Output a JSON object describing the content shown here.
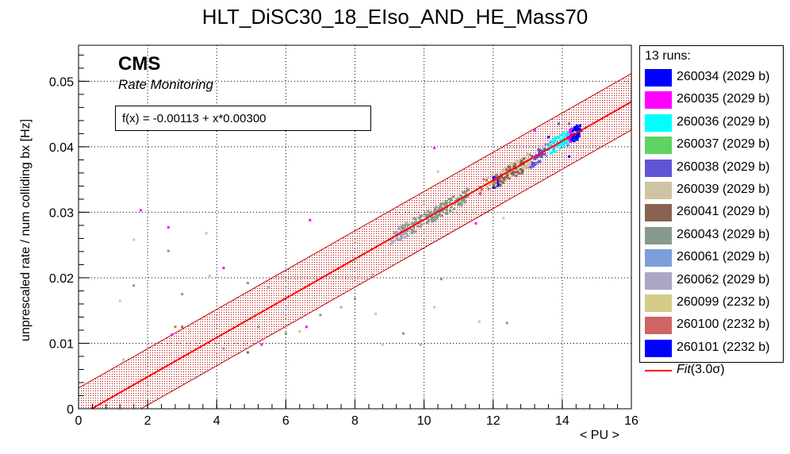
{
  "title": "HLT_DiSC30_18_EIso_AND_HE_Mass70",
  "cms_label": "CMS",
  "rate_monitoring_label": "Rate Monitoring",
  "fit_formula": "f(x) = -0.00113 + x*0.00300",
  "legend": {
    "header": "13 runs:",
    "entries": [
      {
        "label": "260034 (2029 b)",
        "color": "#0000ff"
      },
      {
        "label": "260035 (2029 b)",
        "color": "#ff00ff"
      },
      {
        "label": "260036 (2029 b)",
        "color": "#00ffff"
      },
      {
        "label": "260037 (2029 b)",
        "color": "#5fd35f"
      },
      {
        "label": "260038 (2029 b)",
        "color": "#6155d6"
      },
      {
        "label": "260039 (2029 b)",
        "color": "#cfc4a2"
      },
      {
        "label": "260041 (2029 b)",
        "color": "#8a6251"
      },
      {
        "label": "260043 (2029 b)",
        "color": "#879a8b"
      },
      {
        "label": "260061 (2029 b)",
        "color": "#7d9ed8"
      },
      {
        "label": "260062 (2029 b)",
        "color": "#aaa6c4"
      },
      {
        "label": "260099 (2232 b)",
        "color": "#d4cc86"
      },
      {
        "label": "260100 (2232 b)",
        "color": "#cf6465"
      },
      {
        "label": "260101 (2232 b)",
        "color": "#0000ff"
      }
    ],
    "fit_entry": {
      "label_italic": "Fit",
      "label_rest": "(3.0σ)",
      "color": "#ff0000"
    }
  },
  "chart_data": {
    "type": "scatter",
    "title": "HLT_DiSC30_18_EIso_AND_HE_Mass70",
    "xlabel": "< PU >",
    "ylabel": "unprescaled rate / num colliding bx [Hz]",
    "xlim": [
      0,
      16
    ],
    "ylim": [
      0,
      0.0555
    ],
    "x_ticks": [
      0,
      2,
      4,
      6,
      8,
      10,
      12,
      14,
      16
    ],
    "y_ticks": [
      0,
      0.01,
      0.02,
      0.03,
      0.04,
      0.05
    ],
    "y_tick_labels": [
      "0",
      "0.01",
      "0.02",
      "0.03",
      "0.04",
      "0.05"
    ],
    "grid": true,
    "fit": {
      "intercept": -0.00113,
      "slope": 0.003,
      "band_sigma": 3.0,
      "band_halfwidth": 0.0043,
      "color": "#ff0000"
    },
    "series": [
      {
        "name": "260101 (2232 b)",
        "color": "#0000ff",
        "x_range": [
          14.2,
          14.55
        ],
        "y_center_offset": 0.0,
        "n": 55,
        "outliers": [
          [
            14.2,
            0.0385
          ]
        ]
      },
      {
        "name": "260035 (2029 b)",
        "color": "#ff00ff",
        "x_range": [
          14.1,
          14.3
        ],
        "y_center_offset": 0.0,
        "n": 16,
        "outliers": [
          [
            13.2,
            0.0425
          ],
          [
            1.8,
            0.0303
          ],
          [
            2.6,
            0.0277
          ],
          [
            4.2,
            0.0215
          ],
          [
            6.7,
            0.0288
          ],
          [
            11.5,
            0.0283
          ],
          [
            5.3,
            0.0098
          ],
          [
            2.7,
            0.0113
          ],
          [
            6.6,
            0.0125
          ],
          [
            10.3,
            0.0398
          ]
        ]
      },
      {
        "name": "260036 (2029 b)",
        "color": "#00ffff",
        "x_range": [
          13.6,
          14.2
        ],
        "y_center_offset": 0.0,
        "n": 60,
        "outliers": []
      },
      {
        "name": "260038 (2029 b)",
        "color": "#6155d6",
        "x_range": [
          13.0,
          13.5
        ],
        "y_center_offset": -0.0003,
        "n": 45,
        "outliers": [
          [
            13.9,
            0.0435
          ],
          [
            14.2,
            0.0435
          ]
        ]
      },
      {
        "name": "260034 (2029 b)",
        "color": "#0000ff",
        "x_range": [
          12.0,
          12.2
        ],
        "y_center_offset": -0.0003,
        "n": 18,
        "outliers": [
          [
            13.6,
            0.0415
          ]
        ]
      },
      {
        "name": "260039 (2029 b)",
        "color": "#cfc4a2",
        "x_range": [
          12.2,
          13.1
        ],
        "y_center_offset": 0.0,
        "n": 90,
        "outliers": [
          [
            1.6,
            0.0258
          ],
          [
            3.7,
            0.0268
          ],
          [
            6.4,
            0.0118
          ],
          [
            8.6,
            0.0145
          ],
          [
            10.3,
            0.0155
          ],
          [
            11.6,
            0.0133
          ],
          [
            12.3,
            0.0291
          ],
          [
            10.4,
            0.0362
          ],
          [
            1.3,
            0.0075
          ],
          [
            3.2,
            0.0118
          ],
          [
            8.8,
            0.0098
          ]
        ]
      },
      {
        "name": "260041 (2029 b)",
        "color": "#8a6251",
        "x_range": [
          12.0,
          12.9
        ],
        "y_center_offset": -0.0004,
        "n": 60,
        "outliers": [
          [
            3.0,
            0.0125
          ],
          [
            4.9,
            0.0086
          ]
        ]
      },
      {
        "name": "260043 (2029 b)",
        "color": "#879a8b",
        "x_range": [
          9.3,
          11.3
        ],
        "y_center_offset": 0.0,
        "n": 170,
        "outliers": [
          [
            1.6,
            0.0188
          ],
          [
            2.6,
            0.0241
          ],
          [
            3.0,
            0.0175
          ],
          [
            4.9,
            0.0192
          ],
          [
            6.0,
            0.0115
          ],
          [
            7.0,
            0.0143
          ],
          [
            8.0,
            0.0168
          ],
          [
            9.4,
            0.0115
          ],
          [
            10.5,
            0.0198
          ],
          [
            12.4,
            0.0131
          ],
          [
            4.2,
            0.0092
          ],
          [
            3.4,
            0.0048
          ],
          [
            5.2,
            0.0125
          ]
        ]
      },
      {
        "name": "260061 (2029 b)",
        "color": "#7d9ed8",
        "x_range": [
          13.5,
          13.9
        ],
        "y_center_offset": 0.0,
        "n": 10,
        "outliers": []
      },
      {
        "name": "260062 (2029 b)",
        "color": "#aaa6c4",
        "x_range": [
          9.0,
          9.5
        ],
        "y_center_offset": 0.0,
        "n": 30,
        "outliers": [
          [
            5.5,
            0.0185
          ],
          [
            8.5,
            0.0205
          ],
          [
            7.6,
            0.0155
          ],
          [
            9.9,
            0.0098
          ]
        ]
      },
      {
        "name": "260099 (2232 b)",
        "color": "#d4cc86",
        "x_range": [
          11.8,
          12.1
        ],
        "y_center_offset": 0.0,
        "n": 12,
        "outliers": [
          [
            3.8,
            0.0203
          ],
          [
            1.2,
            0.0165
          ]
        ]
      },
      {
        "name": "260100 (2232 b)",
        "color": "#cf6465",
        "x_range": [
          11.6,
          12.1
        ],
        "y_center_offset": 0.0,
        "n": 12,
        "outliers": [
          [
            2.8,
            0.0125
          ]
        ]
      }
    ]
  }
}
